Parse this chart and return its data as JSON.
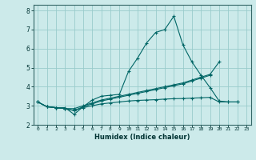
{
  "title": "",
  "xlabel": "Humidex (Indice chaleur)",
  "ylabel": "",
  "bg_color": "#cceaea",
  "grid_color": "#99cccc",
  "line_color": "#006666",
  "xlim": [
    -0.5,
    23.5
  ],
  "ylim": [
    2.0,
    8.3
  ],
  "yticks": [
    2,
    3,
    4,
    5,
    6,
    7,
    8
  ],
  "xticks": [
    0,
    1,
    2,
    3,
    4,
    5,
    6,
    7,
    8,
    9,
    10,
    11,
    12,
    13,
    14,
    15,
    16,
    17,
    18,
    19,
    20,
    21,
    22,
    23
  ],
  "series": [
    {
      "x": [
        0,
        1,
        2,
        3,
        4,
        5,
        6,
        7,
        8,
        9,
        10,
        11,
        12,
        13,
        14,
        15,
        16,
        17,
        18,
        19,
        20,
        21,
        22
      ],
      "y": [
        3.2,
        2.95,
        2.9,
        2.9,
        2.55,
        2.95,
        3.3,
        3.5,
        3.55,
        3.6,
        4.8,
        5.5,
        6.3,
        6.85,
        7.0,
        7.7,
        6.2,
        5.3,
        4.6,
        3.95,
        3.25,
        3.2,
        3.2
      ]
    },
    {
      "x": [
        0,
        1,
        2,
        3,
        4,
        5,
        6,
        7,
        8,
        9,
        10,
        11,
        12,
        13,
        14,
        15,
        16,
        17,
        18,
        19,
        20
      ],
      "y": [
        3.2,
        2.95,
        2.9,
        2.85,
        2.85,
        3.0,
        3.15,
        3.3,
        3.4,
        3.5,
        3.6,
        3.7,
        3.8,
        3.9,
        4.0,
        4.1,
        4.2,
        4.35,
        4.5,
        4.65,
        5.3
      ]
    },
    {
      "x": [
        0,
        1,
        2,
        3,
        4,
        5,
        6,
        7,
        8,
        9,
        10,
        11,
        12,
        13,
        14,
        15,
        16,
        17,
        18,
        19
      ],
      "y": [
        3.2,
        2.95,
        2.9,
        2.85,
        2.75,
        2.95,
        3.1,
        3.25,
        3.35,
        3.45,
        3.55,
        3.65,
        3.75,
        3.85,
        3.95,
        4.05,
        4.15,
        4.3,
        4.45,
        4.6
      ]
    },
    {
      "x": [
        0,
        1,
        2,
        3,
        4,
        5,
        6,
        7,
        8,
        9,
        10,
        11,
        12,
        13,
        14,
        15,
        16,
        17,
        18,
        19,
        20,
        21,
        22
      ],
      "y": [
        3.2,
        2.95,
        2.9,
        2.85,
        2.75,
        2.9,
        3.0,
        3.1,
        3.15,
        3.2,
        3.25,
        3.28,
        3.3,
        3.32,
        3.35,
        3.37,
        3.38,
        3.4,
        3.42,
        3.44,
        3.2,
        3.2,
        3.2
      ]
    }
  ]
}
